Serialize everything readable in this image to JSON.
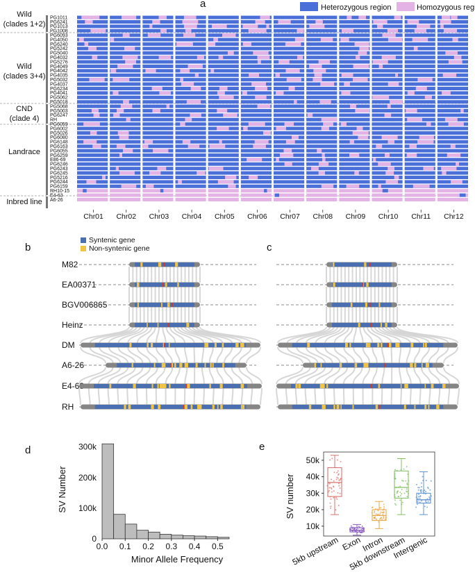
{
  "panel_a": {
    "label": "a",
    "legend": [
      {
        "label": "Heterozygous region",
        "color": "#4a6fd8"
      },
      {
        "label": "Homozygous region",
        "color": "#e4b3e6"
      }
    ],
    "groups": [
      {
        "name": "Wild",
        "sub": "(clades 1+2)"
      },
      {
        "name": "Wild",
        "sub": "(clades 3+4)"
      },
      {
        "name": "CND",
        "sub": "(clade 4)"
      },
      {
        "name": "Landrace",
        "sub": ""
      },
      {
        "name": "Inbred line",
        "sub": ""
      }
    ],
    "samples": [
      "PG1011",
      "PG6241",
      "PG1013",
      "PG1008",
      "PG6093",
      "PG4050",
      "PG6240",
      "PG5242",
      "PG5040",
      "PG4032",
      "PG5276",
      "PG4049",
      "PG4042",
      "PG4035",
      "PG5032",
      "PG4037",
      "PG6234",
      "PG4041",
      "PG5062",
      "PG5018",
      "PG5068",
      "PG5003",
      "PG6247",
      "RH",
      "PG6059",
      "PG6002",
      "PG5026",
      "PG6080",
      "PG6148",
      "PG6163",
      "PG6055",
      "PG6259",
      "E86-69",
      "PG6246",
      "PG6243",
      "PG6245",
      "PG5216",
      "PG6244",
      "PG6159",
      "RH10-15",
      "E4-63",
      "A6-26"
    ],
    "chromosomes": [
      "Chr01",
      "Chr02",
      "Chr03",
      "Chr04",
      "Chr05",
      "Chr06",
      "Chr07",
      "Chr08",
      "Chr09",
      "Chr10",
      "Chr11",
      "Chr12"
    ]
  },
  "panel_b": {
    "label": "b",
    "legend": [
      {
        "label": "Syntenic gene",
        "color": "#4a6fb0"
      },
      {
        "label": "Non-syntenic gene",
        "color": "#f2c443"
      }
    ],
    "genomes": [
      "M82",
      "EA00371",
      "BGV006865",
      "Heinz",
      "DM",
      "A6-26",
      "E4-63",
      "RH"
    ]
  },
  "panel_c": {
    "label": "c"
  },
  "panel_d": {
    "label": "d",
    "chart_data": {
      "type": "bar",
      "title": "",
      "xlabel": "Minor Allele Frequency",
      "ylabel": "SV Number",
      "bin_width": 0.05,
      "bin_starts": [
        0.0,
        0.05,
        0.1,
        0.15,
        0.2,
        0.25,
        0.3,
        0.35,
        0.4,
        0.45,
        0.5
      ],
      "values": [
        310000,
        80000,
        48000,
        28000,
        22000,
        15000,
        12000,
        10000,
        9000,
        7000,
        5000
      ],
      "xlim": [
        0,
        0.55
      ],
      "ylim": [
        0,
        340000
      ],
      "xticks": [
        "0.0",
        "0.1",
        "0.2",
        "0.3",
        "0.4",
        "0.5"
      ],
      "xtick_values": [
        0.0,
        0.1,
        0.2,
        0.3,
        0.4,
        0.5
      ],
      "yticks": [
        "0",
        "100k",
        "200k",
        "300k"
      ],
      "ytick_values": [
        0,
        100000,
        200000,
        300000
      ],
      "bar_color": "#bdbdbd"
    }
  },
  "panel_e": {
    "label": "e",
    "chart_data": {
      "type": "box",
      "title": "",
      "xlabel": "",
      "ylabel": "SV number",
      "categories": [
        "5kb upstream",
        "Exon",
        "Intron",
        "5kb downstream",
        "Intergenic"
      ],
      "colors": [
        "#d9736d",
        "#8a5bbf",
        "#e8a84a",
        "#84c06a",
        "#5d93d6"
      ],
      "q1": [
        28000,
        6500,
        13500,
        27000,
        24000
      ],
      "median": [
        36500,
        7500,
        16500,
        33500,
        26000
      ],
      "q3": [
        45500,
        9000,
        20000,
        43500,
        30000
      ],
      "whisker_low": [
        17000,
        4500,
        8500,
        17000,
        17000
      ],
      "whisker_high": [
        53000,
        11000,
        25000,
        51000,
        43000
      ],
      "ylim": [
        4000,
        55000
      ],
      "yticks": [
        "10k",
        "20k",
        "30k",
        "40k",
        "50k"
      ],
      "ytick_values": [
        10000,
        20000,
        30000,
        40000,
        50000
      ]
    }
  }
}
